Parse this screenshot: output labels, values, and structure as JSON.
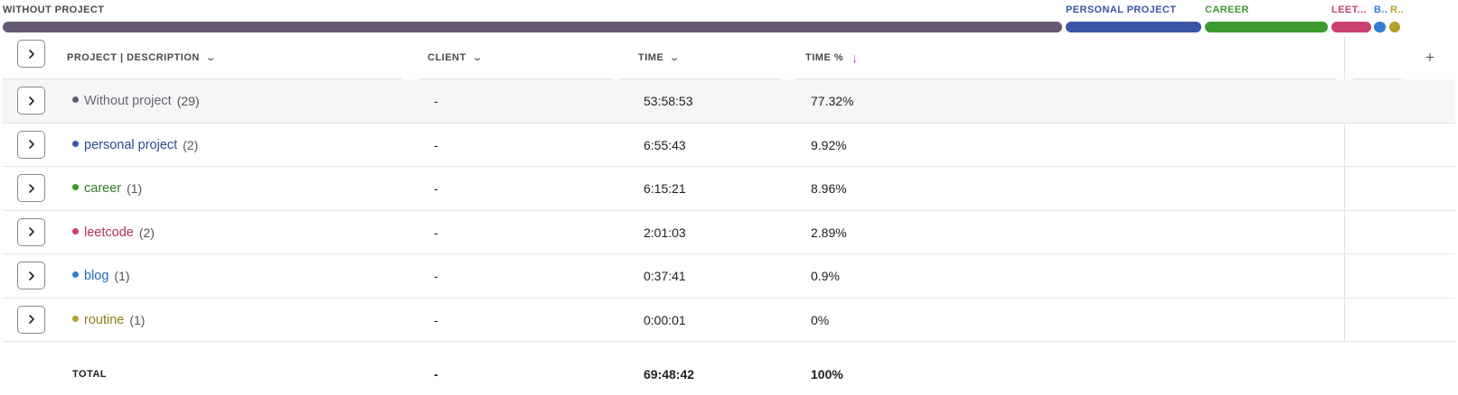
{
  "project_bar": [
    {
      "label": "WITHOUT PROJECT",
      "color": "#655872",
      "share": 77.32
    },
    {
      "label": "PERSONAL PROJECT",
      "color": "#3b55a5",
      "share": 9.92
    },
    {
      "label": "CAREER",
      "color": "#3a9a2b",
      "share": 8.96
    },
    {
      "label": "LEET...",
      "color": "#c8416f",
      "share": 2.89
    },
    {
      "label": "B..",
      "color": "#2d7fd6",
      "share": 0.9
    },
    {
      "label": "R..",
      "color": "#b3a12a",
      "share": 0.0
    }
  ],
  "table": {
    "headers": {
      "project": "PROJECT | DESCRIPTION",
      "client": "CLIENT",
      "time": "TIME",
      "time_pct": "TIME %",
      "add": "+"
    },
    "rows": [
      {
        "name": "Without project",
        "count": "(29)",
        "client": "-",
        "time": "53:58:53",
        "pct": "77.32%",
        "color": "#655872",
        "name_color": "#6d6375"
      },
      {
        "name": "personal project",
        "count": "(2)",
        "client": "-",
        "time": "6:55:43",
        "pct": "9.92%",
        "color": "#3b55a5",
        "name_color": "#2f4a8f"
      },
      {
        "name": "career",
        "count": "(1)",
        "client": "-",
        "time": "6:15:21",
        "pct": "8.96%",
        "color": "#3a9a2b",
        "name_color": "#2f7f22"
      },
      {
        "name": "leetcode",
        "count": "(2)",
        "client": "-",
        "time": "2:01:03",
        "pct": "2.89%",
        "color": "#c8416f",
        "name_color": "#b2305d"
      },
      {
        "name": "blog",
        "count": "(1)",
        "client": "-",
        "time": "0:37:41",
        "pct": "0.9%",
        "color": "#2d7fd6",
        "name_color": "#2469b8"
      },
      {
        "name": "routine",
        "count": "(1)",
        "client": "-",
        "time": "0:00:01",
        "pct": "0%",
        "color": "#b3a12a",
        "name_color": "#8a7c1c"
      }
    ],
    "total": {
      "label": "TOTAL",
      "client": "-",
      "time": "69:48:42",
      "pct": "100%"
    }
  },
  "icons": {
    "expand": "chevron-right-icon",
    "sort_desc": "arrow-down-icon",
    "column_menu": "chevron-down-icon",
    "add_column": "plus-icon"
  },
  "colors": {
    "sort_accent": "#b24bb6"
  }
}
